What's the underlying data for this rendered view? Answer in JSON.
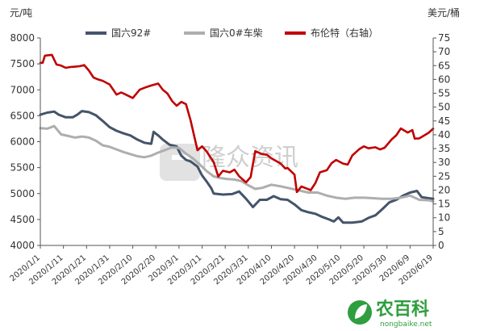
{
  "chart_data": {
    "type": "line",
    "left_axis": {
      "unit": "元/吨",
      "ylim": [
        4000,
        8000
      ],
      "ticks": [
        4000,
        4500,
        5000,
        5500,
        6000,
        6500,
        7000,
        7500,
        8000
      ]
    },
    "right_axis": {
      "unit": "美元/桶",
      "ylim": [
        0,
        75
      ],
      "ticks": [
        0,
        5,
        10,
        15,
        20,
        25,
        30,
        35,
        40,
        45,
        50,
        55,
        60,
        65,
        70,
        75
      ]
    },
    "x_range": [
      "2020/1/1",
      "2020/6/19"
    ],
    "x_tick_labels": [
      "2020/1/1",
      "2020/1/11",
      "2020/1/21",
      "2020/1/31",
      "2020/2/10",
      "2020/2/20",
      "2020/3/1",
      "2020/3/11",
      "2020/3/21",
      "2020/3/31",
      "2020/4/10",
      "2020/4/20",
      "2020/4/30",
      "2020/5/10",
      "2020/5/20",
      "2020/5/30",
      "2020/6/9",
      "2020/6/19"
    ],
    "series": [
      {
        "name": "国六92#",
        "axis": "left",
        "color": "#44546a",
        "points": [
          [
            "2020/1/1",
            6520
          ],
          [
            "2020/1/4",
            6560
          ],
          [
            "2020/1/7",
            6580
          ],
          [
            "2020/1/9",
            6520
          ],
          [
            "2020/1/12",
            6470
          ],
          [
            "2020/1/15",
            6470
          ],
          [
            "2020/1/17",
            6520
          ],
          [
            "2020/1/19",
            6590
          ],
          [
            "2020/1/22",
            6570
          ],
          [
            "2020/1/25",
            6510
          ],
          [
            "2020/1/28",
            6400
          ],
          [
            "2020/1/31",
            6280
          ],
          [
            "2020/2/3",
            6210
          ],
          [
            "2020/2/6",
            6160
          ],
          [
            "2020/2/9",
            6120
          ],
          [
            "2020/2/12",
            6040
          ],
          [
            "2020/2/15",
            5980
          ],
          [
            "2020/2/18",
            5960
          ],
          [
            "2020/2/19",
            6190
          ],
          [
            "2020/2/21",
            6120
          ],
          [
            "2020/2/23",
            6040
          ],
          [
            "2020/2/26",
            5940
          ],
          [
            "2020/2/29",
            5910
          ],
          [
            "2020/3/2",
            5730
          ],
          [
            "2020/3/4",
            5650
          ],
          [
            "2020/3/6",
            5620
          ],
          [
            "2020/3/9",
            5520
          ],
          [
            "2020/3/11",
            5350
          ],
          [
            "2020/3/13",
            5230
          ],
          [
            "2020/3/15",
            5100
          ],
          [
            "2020/3/16",
            5000
          ],
          [
            "2020/3/20",
            4980
          ],
          [
            "2020/3/24",
            4990
          ],
          [
            "2020/3/27",
            5040
          ],
          [
            "2020/3/30",
            4900
          ],
          [
            "2020/4/2",
            4740
          ],
          [
            "2020/4/5",
            4880
          ],
          [
            "2020/4/8",
            4880
          ],
          [
            "2020/4/11",
            4950
          ],
          [
            "2020/4/14",
            4890
          ],
          [
            "2020/4/17",
            4880
          ],
          [
            "2020/4/20",
            4790
          ],
          [
            "2020/4/23",
            4680
          ],
          [
            "2020/4/26",
            4640
          ],
          [
            "2020/4/29",
            4610
          ],
          [
            "2020/5/2",
            4550
          ],
          [
            "2020/5/5",
            4500
          ],
          [
            "2020/5/7",
            4460
          ],
          [
            "2020/5/9",
            4540
          ],
          [
            "2020/5/11",
            4440
          ],
          [
            "2020/5/15",
            4440
          ],
          [
            "2020/5/19",
            4460
          ],
          [
            "2020/5/22",
            4530
          ],
          [
            "2020/5/25",
            4580
          ],
          [
            "2020/5/28",
            4700
          ],
          [
            "2020/5/31",
            4830
          ],
          [
            "2020/6/3",
            4880
          ],
          [
            "2020/6/6",
            4960
          ],
          [
            "2020/6/9",
            5020
          ],
          [
            "2020/6/12",
            5050
          ],
          [
            "2020/6/14",
            4930
          ],
          [
            "2020/6/17",
            4910
          ],
          [
            "2020/6/19",
            4900
          ]
        ]
      },
      {
        "name": "国六0#车柴",
        "axis": "left",
        "color": "#aeaeae",
        "points": [
          [
            "2020/1/1",
            6260
          ],
          [
            "2020/1/4",
            6250
          ],
          [
            "2020/1/7",
            6300
          ],
          [
            "2020/1/10",
            6140
          ],
          [
            "2020/1/13",
            6110
          ],
          [
            "2020/1/16",
            6080
          ],
          [
            "2020/1/19",
            6100
          ],
          [
            "2020/1/22",
            6080
          ],
          [
            "2020/1/25",
            6020
          ],
          [
            "2020/1/28",
            5930
          ],
          [
            "2020/1/31",
            5900
          ],
          [
            "2020/2/3",
            5850
          ],
          [
            "2020/2/6",
            5800
          ],
          [
            "2020/2/9",
            5760
          ],
          [
            "2020/2/12",
            5720
          ],
          [
            "2020/2/15",
            5700
          ],
          [
            "2020/2/18",
            5730
          ],
          [
            "2020/2/21",
            5790
          ],
          [
            "2020/2/24",
            5840
          ],
          [
            "2020/2/27",
            5890
          ],
          [
            "2020/3/1",
            5880
          ],
          [
            "2020/3/4",
            5770
          ],
          [
            "2020/3/7",
            5680
          ],
          [
            "2020/3/10",
            5560
          ],
          [
            "2020/3/13",
            5430
          ],
          [
            "2020/3/16",
            5330
          ],
          [
            "2020/3/19",
            5300
          ],
          [
            "2020/3/22",
            5280
          ],
          [
            "2020/3/25",
            5270
          ],
          [
            "2020/3/28",
            5240
          ],
          [
            "2020/3/31",
            5160
          ],
          [
            "2020/4/3",
            5090
          ],
          [
            "2020/4/6",
            5110
          ],
          [
            "2020/4/10",
            5170
          ],
          [
            "2020/4/14",
            5140
          ],
          [
            "2020/4/18",
            5100
          ],
          [
            "2020/4/22",
            5060
          ],
          [
            "2020/4/26",
            5020
          ],
          [
            "2020/4/30",
            5020
          ],
          [
            "2020/5/4",
            4960
          ],
          [
            "2020/5/8",
            4920
          ],
          [
            "2020/5/12",
            4900
          ],
          [
            "2020/5/16",
            4920
          ],
          [
            "2020/5/20",
            4920
          ],
          [
            "2020/5/24",
            4910
          ],
          [
            "2020/5/28",
            4900
          ],
          [
            "2020/6/1",
            4900
          ],
          [
            "2020/6/5",
            4920
          ],
          [
            "2020/6/9",
            4960
          ],
          [
            "2020/6/13",
            4880
          ],
          [
            "2020/6/17",
            4870
          ],
          [
            "2020/6/19",
            4850
          ]
        ]
      },
      {
        "name": "布伦特（右轴）",
        "axis": "right",
        "color": "#c00000",
        "points": [
          [
            "2020/1/1",
            66.0
          ],
          [
            "2020/1/2",
            66.0
          ],
          [
            "2020/1/3",
            68.6
          ],
          [
            "2020/1/6",
            68.9
          ],
          [
            "2020/1/8",
            65.4
          ],
          [
            "2020/1/10",
            65.0
          ],
          [
            "2020/1/12",
            64.2
          ],
          [
            "2020/1/14",
            64.5
          ],
          [
            "2020/1/16",
            64.6
          ],
          [
            "2020/1/18",
            64.8
          ],
          [
            "2020/1/20",
            65.2
          ],
          [
            "2020/1/22",
            63.2
          ],
          [
            "2020/1/24",
            60.7
          ],
          [
            "2020/1/26",
            60.0
          ],
          [
            "2020/1/28",
            59.5
          ],
          [
            "2020/1/31",
            58.2
          ],
          [
            "2020/2/3",
            54.5
          ],
          [
            "2020/2/5",
            55.3
          ],
          [
            "2020/2/7",
            54.5
          ],
          [
            "2020/2/10",
            53.3
          ],
          [
            "2020/2/13",
            56.3
          ],
          [
            "2020/2/16",
            57.3
          ],
          [
            "2020/2/18",
            57.8
          ],
          [
            "2020/2/21",
            58.5
          ],
          [
            "2020/2/23",
            56.3
          ],
          [
            "2020/2/25",
            54.9
          ],
          [
            "2020/2/27",
            52.2
          ],
          [
            "2020/2/29",
            50.5
          ],
          [
            "2020/3/2",
            51.9
          ],
          [
            "2020/3/4",
            51.1
          ],
          [
            "2020/3/6",
            45.3
          ],
          [
            "2020/3/9",
            34.4
          ],
          [
            "2020/3/11",
            35.8
          ],
          [
            "2020/3/13",
            33.9
          ],
          [
            "2020/3/16",
            30.1
          ],
          [
            "2020/3/18",
            24.9
          ],
          [
            "2020/3/20",
            27.0
          ],
          [
            "2020/3/23",
            26.4
          ],
          [
            "2020/3/25",
            27.4
          ],
          [
            "2020/3/27",
            25.0
          ],
          [
            "2020/3/30",
            22.8
          ],
          [
            "2020/4/1",
            24.7
          ],
          [
            "2020/4/3",
            34.1
          ],
          [
            "2020/4/6",
            33.0
          ],
          [
            "2020/4/8",
            32.8
          ],
          [
            "2020/4/10",
            31.5
          ],
          [
            "2020/4/14",
            29.6
          ],
          [
            "2020/4/16",
            27.8
          ],
          [
            "2020/4/17",
            28.0
          ],
          [
            "2020/4/20",
            25.6
          ],
          [
            "2020/4/21",
            19.3
          ],
          [
            "2020/4/23",
            21.3
          ],
          [
            "2020/4/27",
            20.0
          ],
          [
            "2020/4/29",
            22.5
          ],
          [
            "2020/5/1",
            26.4
          ],
          [
            "2020/5/4",
            27.2
          ],
          [
            "2020/5/6",
            29.7
          ],
          [
            "2020/5/8",
            30.9
          ],
          [
            "2020/5/11",
            29.6
          ],
          [
            "2020/5/13",
            29.2
          ],
          [
            "2020/5/15",
            32.5
          ],
          [
            "2020/5/18",
            34.8
          ],
          [
            "2020/5/20",
            35.8
          ],
          [
            "2020/5/22",
            35.1
          ],
          [
            "2020/5/25",
            35.5
          ],
          [
            "2020/5/27",
            34.7
          ],
          [
            "2020/5/29",
            35.3
          ],
          [
            "2020/6/1",
            38.3
          ],
          [
            "2020/6/3",
            39.8
          ],
          [
            "2020/6/5",
            42.3
          ],
          [
            "2020/6/8",
            40.8
          ],
          [
            "2020/6/10",
            41.7
          ],
          [
            "2020/6/11",
            38.6
          ],
          [
            "2020/6/13",
            38.7
          ],
          [
            "2020/6/15",
            39.7
          ],
          [
            "2020/6/17",
            40.7
          ],
          [
            "2020/6/19",
            42.2
          ]
        ]
      }
    ]
  },
  "watermark": {
    "text": "隆众资讯"
  },
  "site_logo": {
    "name": "农百科",
    "url": "nongbaike.net",
    "color": "#2e9e3e",
    "icon": "leaf-icon"
  }
}
